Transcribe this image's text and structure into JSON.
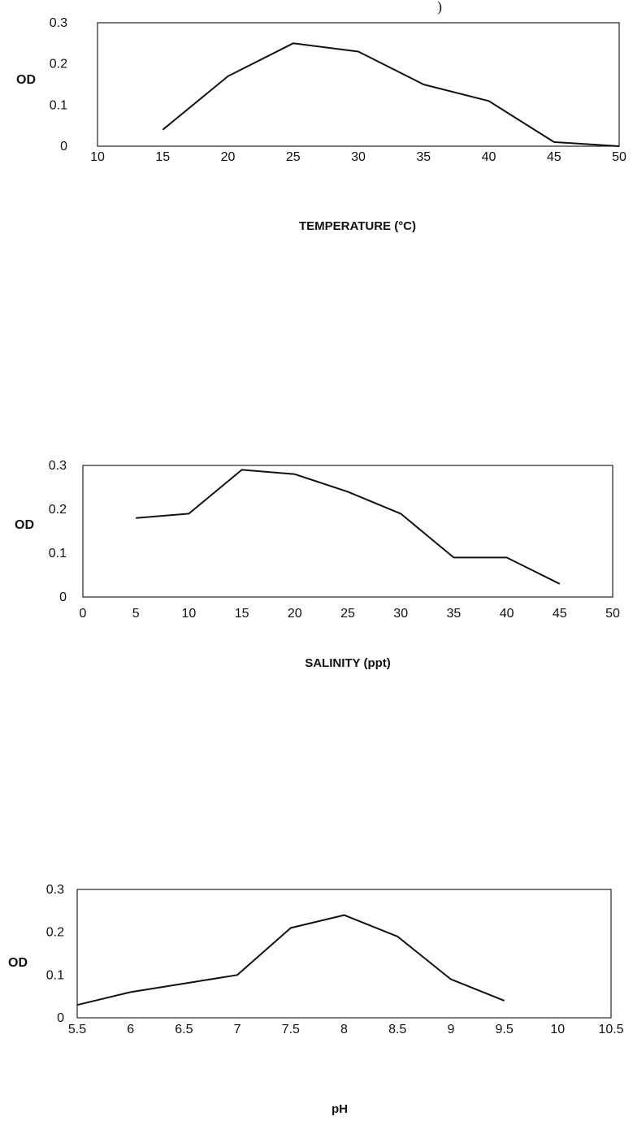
{
  "page_mark": ")",
  "chart_data": [
    {
      "type": "line",
      "title": "",
      "xlabel": "TEMPERATURE (°C)",
      "ylabel": "OD",
      "xlim": [
        10,
        50
      ],
      "ylim": [
        0,
        0.3
      ],
      "x_ticks": [
        "10",
        "15",
        "20",
        "25",
        "30",
        "35",
        "40",
        "45",
        "50"
      ],
      "y_ticks": [
        "0",
        "0.1",
        "0.2",
        "0.3"
      ],
      "grid": false,
      "series": [
        {
          "x": [
            15,
            20,
            25,
            30,
            35,
            40,
            45,
            50
          ],
          "y": [
            0.04,
            0.17,
            0.25,
            0.23,
            0.15,
            0.11,
            0.01,
            0.0
          ]
        }
      ]
    },
    {
      "type": "line",
      "title": "",
      "xlabel": "SALINITY (ppt)",
      "ylabel": "OD",
      "xlim": [
        0,
        50
      ],
      "ylim": [
        0,
        0.3
      ],
      "x_ticks": [
        "0",
        "5",
        "10",
        "15",
        "20",
        "25",
        "30",
        "35",
        "40",
        "45",
        "50"
      ],
      "y_ticks": [
        "0",
        "0.1",
        "0.2",
        "0.3"
      ],
      "grid": false,
      "series": [
        {
          "x": [
            5,
            10,
            15,
            20,
            25,
            30,
            35,
            40,
            45
          ],
          "y": [
            0.18,
            0.19,
            0.29,
            0.28,
            0.24,
            0.19,
            0.09,
            0.09,
            0.03
          ]
        }
      ]
    },
    {
      "type": "line",
      "title": "",
      "xlabel": "pH",
      "ylabel": "OD",
      "xlim": [
        5.5,
        10.5
      ],
      "ylim": [
        0,
        0.3
      ],
      "x_ticks": [
        "5.5",
        "6",
        "6.5",
        "7",
        "7.5",
        "8",
        "8.5",
        "9",
        "9.5",
        "10",
        "10.5"
      ],
      "y_ticks": [
        "0",
        "0.1",
        "0.2",
        "0.3"
      ],
      "grid": false,
      "series": [
        {
          "x": [
            5.5,
            6,
            6.5,
            7,
            7.5,
            8,
            8.5,
            9,
            9.5
          ],
          "y": [
            0.03,
            0.06,
            0.08,
            0.1,
            0.21,
            0.24,
            0.19,
            0.09,
            0.04
          ]
        }
      ]
    }
  ]
}
